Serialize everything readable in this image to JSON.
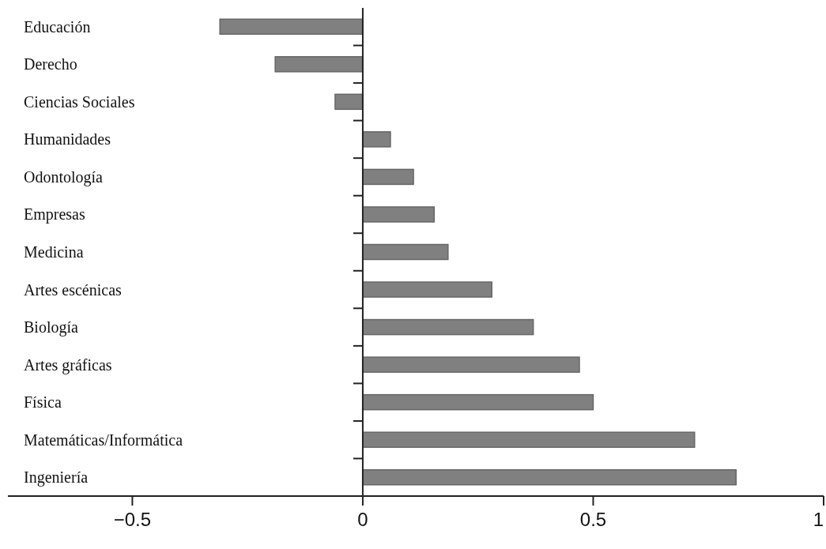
{
  "chart_data": {
    "type": "bar",
    "orientation": "horizontal",
    "categories": [
      "Educación",
      "Derecho",
      "Ciencias Sociales",
      "Humanidades",
      "Odontología",
      "Empresas",
      "Medicina",
      "Artes escénicas",
      "Biología",
      "Artes gráficas",
      "Física",
      "Matemáticas/Informática",
      "Ingeniería"
    ],
    "values": [
      -0.31,
      -0.19,
      -0.06,
      0.06,
      0.11,
      0.155,
      0.185,
      0.28,
      0.37,
      0.47,
      0.5,
      0.72,
      0.81
    ],
    "color": "#808080",
    "xlim": [
      -0.77,
      1
    ],
    "xticks": [
      {
        "value": -0.5,
        "label": "−0.5"
      },
      0,
      0.5,
      1
    ]
  }
}
